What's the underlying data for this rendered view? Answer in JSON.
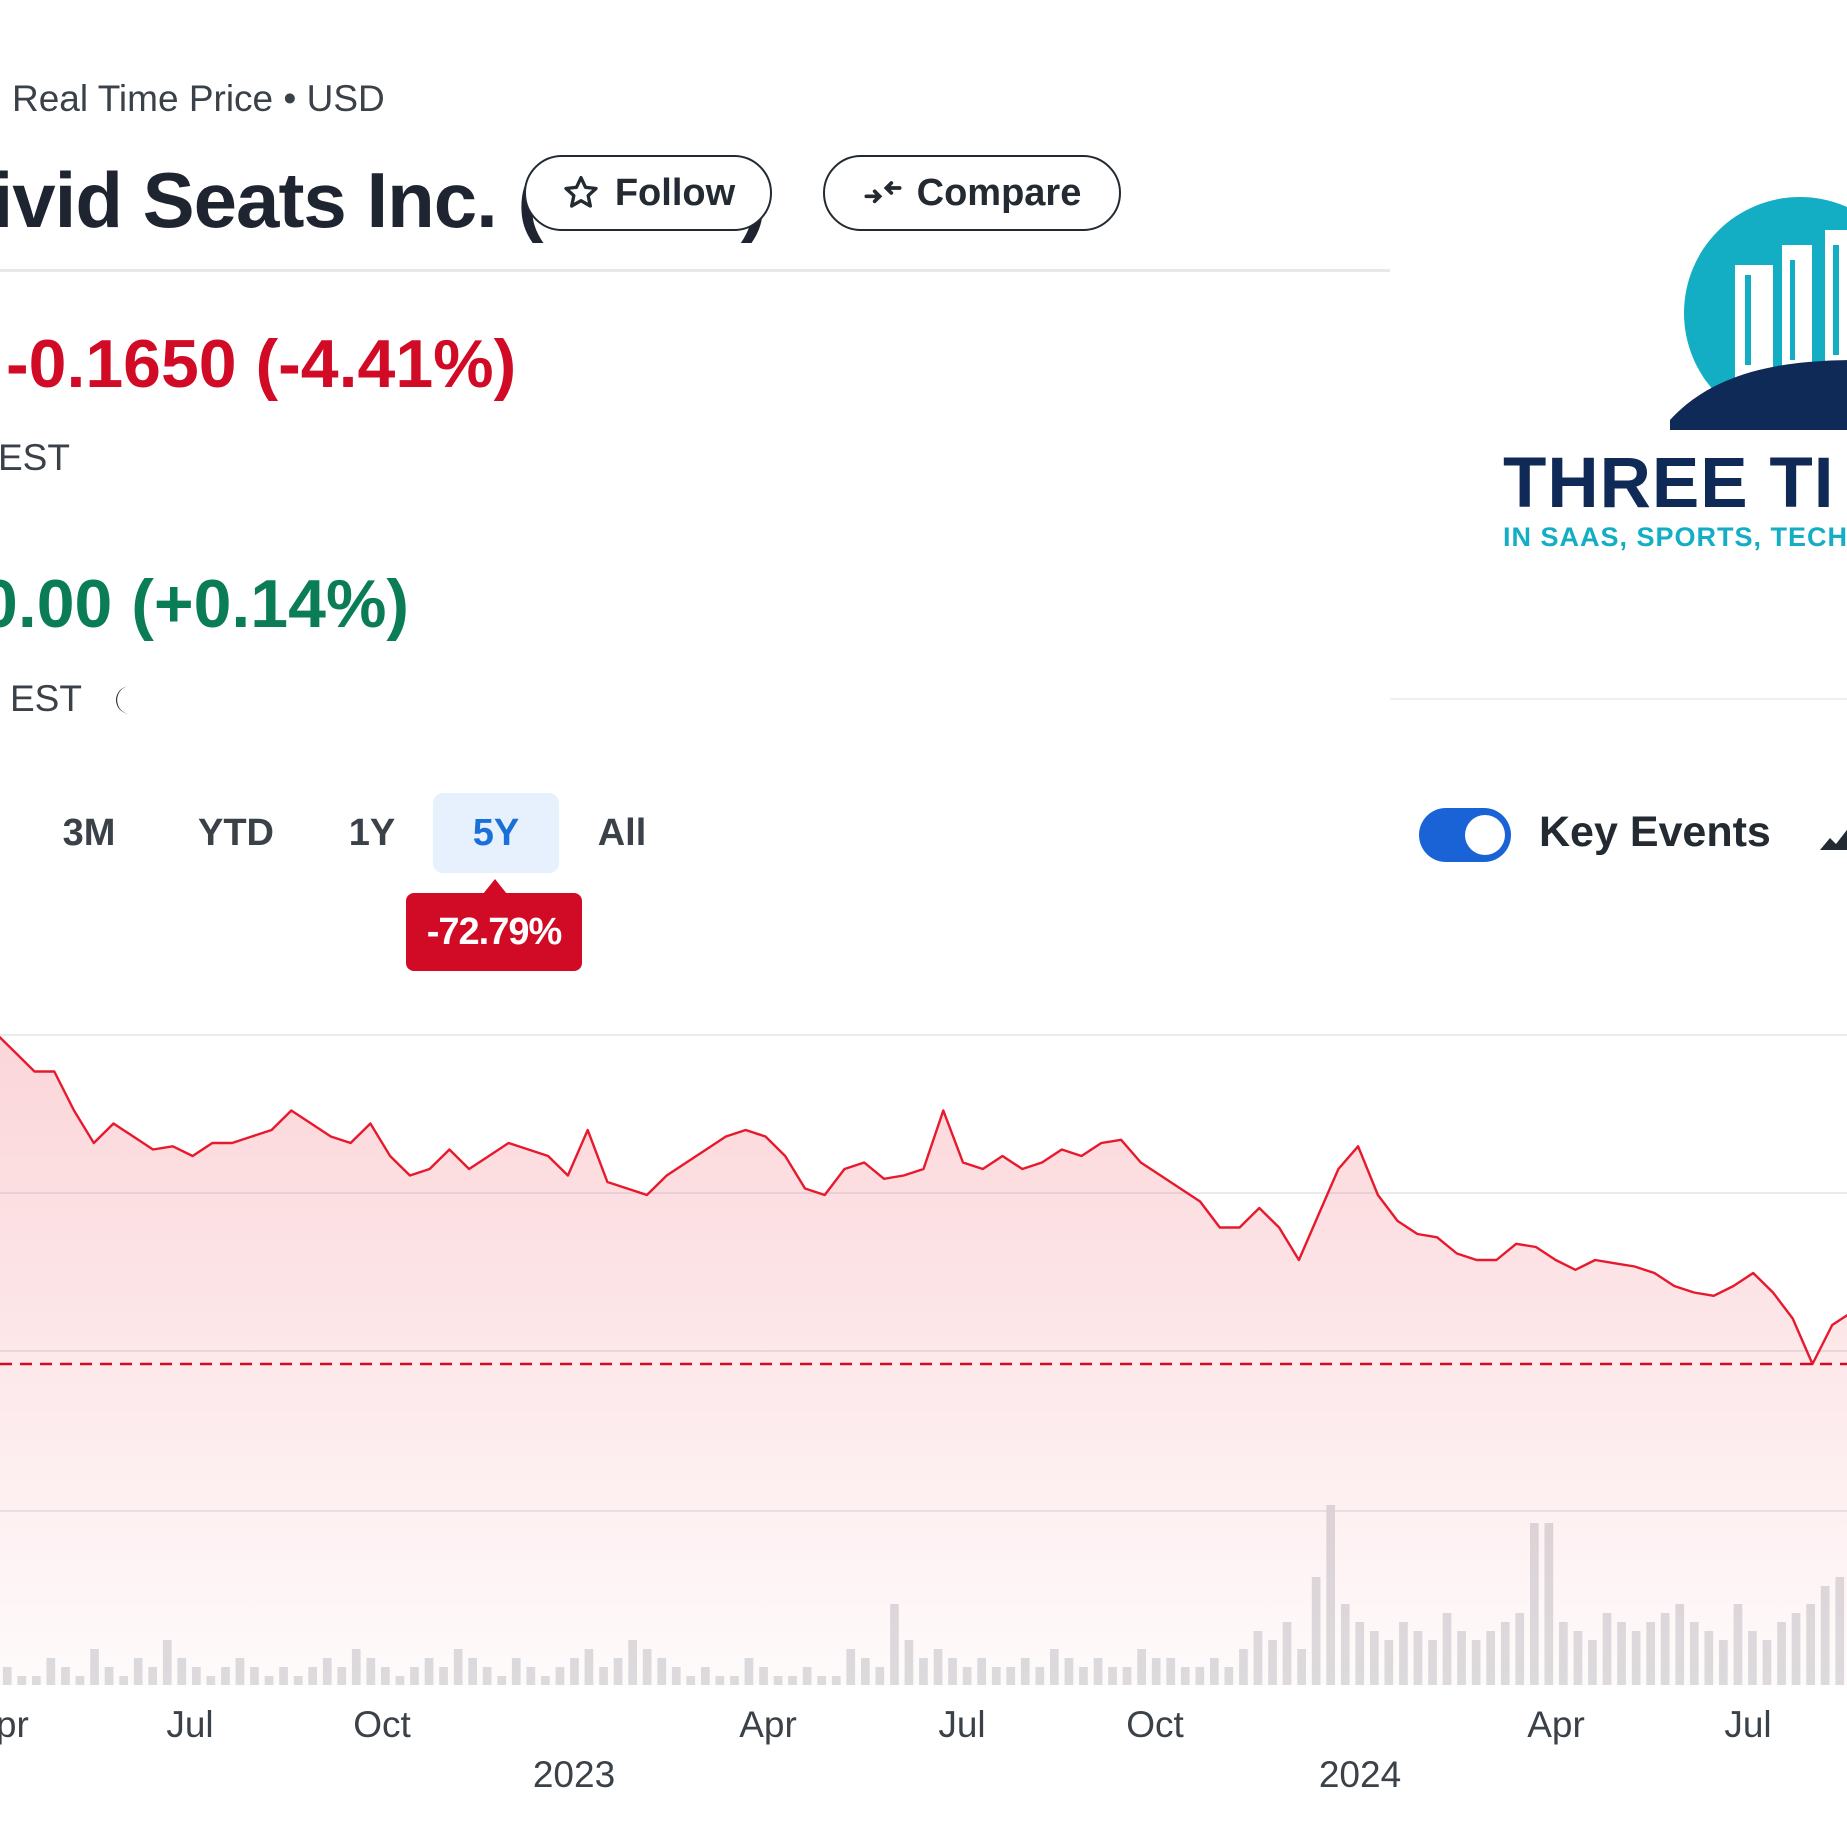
{
  "quote": {
    "source_label": "Real Time Price • USD",
    "company_title": "Vivid Seats Inc. (SEAT)",
    "follow_label": "Follow",
    "compare_label": "Compare",
    "price_change": "-0.1650  (-4.41%)",
    "price_time": "EST",
    "post_change": "0.00  (+0.14%)",
    "post_time": "EST"
  },
  "range_tabs": {
    "items": [
      "3M",
      "YTD",
      "1Y",
      "5Y",
      "All"
    ],
    "active": "5Y",
    "change_badge": "-72.79%"
  },
  "key_events": {
    "label": "Key Events",
    "enabled": true
  },
  "logo": {
    "wordmark": "THREE TI",
    "tagline": "IN SAAS, SPORTS, TECH"
  },
  "colors": {
    "negative": "#d10a26",
    "positive": "#0a7d56",
    "accent": "#1a63d6",
    "line": "#e8192c"
  },
  "chart_data": {
    "type": "line",
    "title": "",
    "xlabel": "",
    "ylabel": "",
    "series": [
      {
        "values": [
          9.0,
          8.7,
          8.4,
          8.4,
          7.8,
          7.3,
          7.6,
          7.4,
          7.2,
          7.25,
          7.1,
          7.3,
          7.3,
          7.4,
          7.5,
          7.8,
          7.6,
          7.4,
          7.3,
          7.6,
          7.1,
          6.8,
          6.9,
          7.2,
          6.9,
          7.1,
          7.3,
          7.2,
          7.1,
          6.8,
          7.5,
          6.7,
          6.6,
          6.5,
          6.8,
          7.0,
          7.2,
          7.4,
          7.5,
          7.4,
          7.1,
          6.6,
          6.5,
          6.9,
          7.0,
          6.75,
          6.8,
          6.9,
          7.8,
          7.0,
          6.9,
          7.1,
          6.9,
          7.0,
          7.2,
          7.1,
          7.3,
          7.35,
          7.0,
          6.8,
          6.6,
          6.4,
          6.0,
          6.0,
          6.3,
          6.0,
          5.5,
          6.2,
          6.9,
          7.25,
          6.5,
          6.1,
          5.9,
          5.85,
          5.6,
          5.5,
          5.5,
          5.75,
          5.7,
          5.5,
          5.35,
          5.5,
          5.45,
          5.4,
          5.3,
          5.1,
          5.0,
          4.95,
          5.1,
          5.3,
          5.0,
          4.6,
          3.9,
          4.5,
          4.7
        ],
        "points": [
          [
            "2022-04-01",
            9.0
          ],
          [
            "2022-04-15",
            8.7
          ],
          [
            "2022-04-29",
            8.4
          ],
          [
            "2022-05-10",
            8.4
          ],
          [
            "2022-05-20",
            7.8
          ],
          [
            "2022-06-01",
            7.3
          ],
          [
            "2022-06-10",
            7.6
          ],
          [
            "2022-06-22",
            7.4
          ],
          [
            "2022-07-05",
            7.2
          ],
          [
            "2022-07-15",
            7.25
          ],
          [
            "2022-07-25",
            7.1
          ],
          [
            "2022-08-05",
            7.3
          ],
          [
            "2022-08-18",
            7.3
          ],
          [
            "2022-08-30",
            7.4
          ],
          [
            "2022-09-08",
            7.5
          ],
          [
            "2022-09-15",
            7.8
          ],
          [
            "2022-09-25",
            7.6
          ],
          [
            "2022-10-05",
            7.4
          ],
          [
            "2022-10-12",
            7.3
          ],
          [
            "2022-10-20",
            7.6
          ],
          [
            "2022-10-30",
            7.1
          ],
          [
            "2022-11-08",
            6.8
          ],
          [
            "2022-11-18",
            6.9
          ],
          [
            "2022-11-28",
            7.2
          ],
          [
            "2022-12-06",
            6.9
          ],
          [
            "2022-12-15",
            7.1
          ],
          [
            "2022-12-25",
            7.3
          ],
          [
            "2023-01-05",
            7.2
          ],
          [
            "2023-01-15",
            7.1
          ],
          [
            "2023-01-22",
            6.8
          ],
          [
            "2023-01-30",
            7.5
          ],
          [
            "2023-02-05",
            6.7
          ],
          [
            "2023-02-12",
            6.6
          ],
          [
            "2023-02-20",
            6.5
          ],
          [
            "2023-03-01",
            6.8
          ],
          [
            "2023-03-10",
            7.0
          ],
          [
            "2023-03-18",
            7.2
          ],
          [
            "2023-03-28",
            7.4
          ],
          [
            "2023-04-08",
            7.5
          ],
          [
            "2023-04-18",
            7.4
          ],
          [
            "2023-04-28",
            7.1
          ],
          [
            "2023-05-08",
            6.6
          ],
          [
            "2023-05-18",
            6.5
          ],
          [
            "2023-05-28",
            6.9
          ],
          [
            "2023-06-06",
            7.0
          ],
          [
            "2023-06-15",
            6.75
          ],
          [
            "2023-06-25",
            6.8
          ],
          [
            "2023-07-05",
            6.9
          ],
          [
            "2023-07-12",
            7.8
          ],
          [
            "2023-07-20",
            7.0
          ],
          [
            "2023-07-30",
            6.9
          ],
          [
            "2023-08-10",
            7.1
          ],
          [
            "2023-08-20",
            6.9
          ],
          [
            "2023-08-30",
            7.0
          ],
          [
            "2023-09-08",
            7.2
          ],
          [
            "2023-09-18",
            7.1
          ],
          [
            "2023-09-28",
            7.3
          ],
          [
            "2023-10-08",
            7.35
          ],
          [
            "2023-10-18",
            7.0
          ],
          [
            "2023-10-28",
            6.8
          ],
          [
            "2023-11-08",
            6.6
          ],
          [
            "2023-11-18",
            6.4
          ],
          [
            "2023-11-28",
            6.0
          ],
          [
            "2023-12-08",
            6.0
          ],
          [
            "2023-12-18",
            6.3
          ],
          [
            "2023-12-28",
            6.0
          ],
          [
            "2024-01-08",
            5.5
          ],
          [
            "2024-01-18",
            6.2
          ],
          [
            "2024-01-28",
            6.9
          ],
          [
            "2024-02-05",
            7.25
          ],
          [
            "2024-02-15",
            6.5
          ],
          [
            "2024-02-25",
            6.1
          ],
          [
            "2024-03-06",
            5.9
          ],
          [
            "2024-03-16",
            5.85
          ],
          [
            "2024-03-26",
            5.6
          ],
          [
            "2024-04-05",
            5.5
          ],
          [
            "2024-04-15",
            5.5
          ],
          [
            "2024-04-25",
            5.75
          ],
          [
            "2024-05-05",
            5.7
          ],
          [
            "2024-05-15",
            5.5
          ],
          [
            "2024-05-25",
            5.35
          ],
          [
            "2024-06-05",
            5.5
          ],
          [
            "2024-06-15",
            5.45
          ],
          [
            "2024-06-25",
            5.4
          ],
          [
            "2024-07-05",
            5.3
          ],
          [
            "2024-07-15",
            5.1
          ],
          [
            "2024-07-25",
            5.0
          ],
          [
            "2024-08-05",
            4.95
          ],
          [
            "2024-08-15",
            5.1
          ],
          [
            "2024-08-25",
            5.3
          ],
          [
            "2024-09-05",
            5.0
          ],
          [
            "2024-09-15",
            4.6
          ],
          [
            "2024-09-25",
            3.9
          ],
          [
            "2024-10-05",
            4.5
          ],
          [
            "2024-10-12",
            4.7
          ]
        ]
      }
    ],
    "volume": [
      2,
      1,
      1,
      3,
      2,
      1,
      4,
      2,
      1,
      3,
      2,
      5,
      3,
      2,
      1,
      2,
      3,
      2,
      1,
      2,
      1,
      2,
      3,
      2,
      4,
      3,
      2,
      1,
      2,
      3,
      2,
      4,
      3,
      2,
      1,
      3,
      2,
      1,
      2,
      3,
      4,
      2,
      3,
      5,
      4,
      3,
      2,
      1,
      2,
      1,
      1,
      3,
      2,
      1,
      1,
      2,
      1,
      1,
      4,
      3,
      2,
      9,
      5,
      3,
      4,
      3,
      2,
      3,
      2,
      2,
      3,
      2,
      4,
      3,
      2,
      3,
      2,
      2,
      4,
      3,
      3,
      2,
      2,
      3,
      2,
      4,
      6,
      5,
      7,
      4,
      12,
      20,
      9,
      7,
      6,
      5,
      7,
      6,
      5,
      8,
      6,
      5,
      6,
      7,
      8,
      18,
      18,
      7,
      6,
      5,
      8,
      7,
      6,
      7,
      8,
      9,
      7,
      6,
      5,
      9,
      6,
      5,
      7,
      8,
      9,
      11,
      12
    ],
    "reference_line": 3.9,
    "x_tick_labels": [
      "Apr",
      "Jul",
      "Oct",
      "Apr",
      "Jul",
      "Oct",
      "Apr",
      "Jul"
    ],
    "x_year_labels": [
      "2023",
      "2024"
    ]
  }
}
